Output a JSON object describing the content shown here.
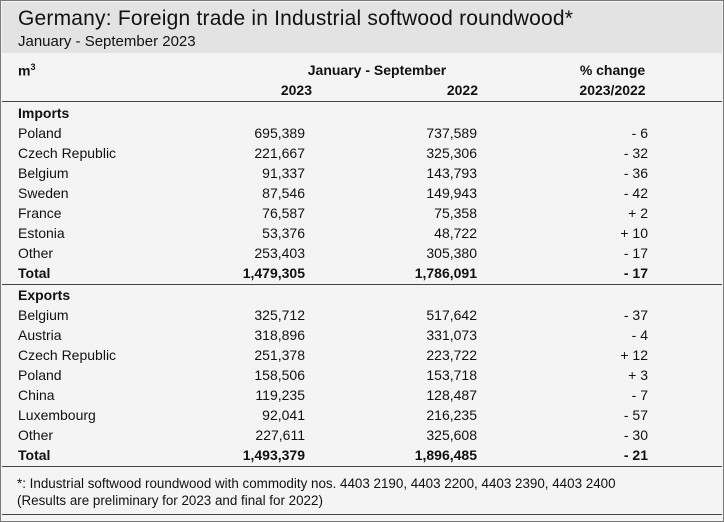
{
  "header": {
    "title": "Germany: Foreign trade in Industrial softwood roundwood*",
    "subtitle": "January - September 2023"
  },
  "columns": {
    "unit": "m",
    "unit_sup": "3",
    "period": "January - September",
    "year1": "2023",
    "year2": "2022",
    "change_line1": "% change",
    "change_line2": "2023/2022"
  },
  "imports": {
    "label": "Imports",
    "rows": [
      {
        "country": "Poland",
        "v2023": "695,389",
        "v2022": "737,589",
        "change": "- 6"
      },
      {
        "country": "Czech Republic",
        "v2023": "221,667",
        "v2022": "325,306",
        "change": "- 32"
      },
      {
        "country": "Belgium",
        "v2023": "91,337",
        "v2022": "143,793",
        "change": "- 36"
      },
      {
        "country": "Sweden",
        "v2023": "87,546",
        "v2022": "149,943",
        "change": "- 42"
      },
      {
        "country": "France",
        "v2023": "76,587",
        "v2022": "75,358",
        "change": "+ 2"
      },
      {
        "country": "Estonia",
        "v2023": "53,376",
        "v2022": "48,722",
        "change": "+ 10"
      },
      {
        "country": "Other",
        "v2023": "253,403",
        "v2022": "305,380",
        "change": "- 17"
      }
    ],
    "total": {
      "label": "Total",
      "v2023": "1,479,305",
      "v2022": "1,786,091",
      "change": "- 17"
    }
  },
  "exports": {
    "label": "Exports",
    "rows": [
      {
        "country": "Belgium",
        "v2023": "325,712",
        "v2022": "517,642",
        "change": "- 37"
      },
      {
        "country": "Austria",
        "v2023": "318,896",
        "v2022": "331,073",
        "change": "- 4"
      },
      {
        "country": "Czech Republic",
        "v2023": "251,378",
        "v2022": "223,722",
        "change": "+ 12"
      },
      {
        "country": "Poland",
        "v2023": "158,506",
        "v2022": "153,718",
        "change": "+ 3"
      },
      {
        "country": "China",
        "v2023": "119,235",
        "v2022": "128,487",
        "change": "- 7"
      },
      {
        "country": "Luxembourg",
        "v2023": "92,041",
        "v2022": "216,235",
        "change": "- 57"
      },
      {
        "country": "Other",
        "v2023": "227,611",
        "v2022": "325,608",
        "change": "- 30"
      }
    ],
    "total": {
      "label": "Total",
      "v2023": "1,493,379",
      "v2022": "1,896,485",
      "change": "- 21"
    }
  },
  "footer": {
    "note": "*: Industrial softwood roundwood with commodity nos. 4403 2190, 4403 2200, 4403 2390, 4403 2400",
    "remark": "(Results are preliminary for 2023 and final for 2022)"
  }
}
